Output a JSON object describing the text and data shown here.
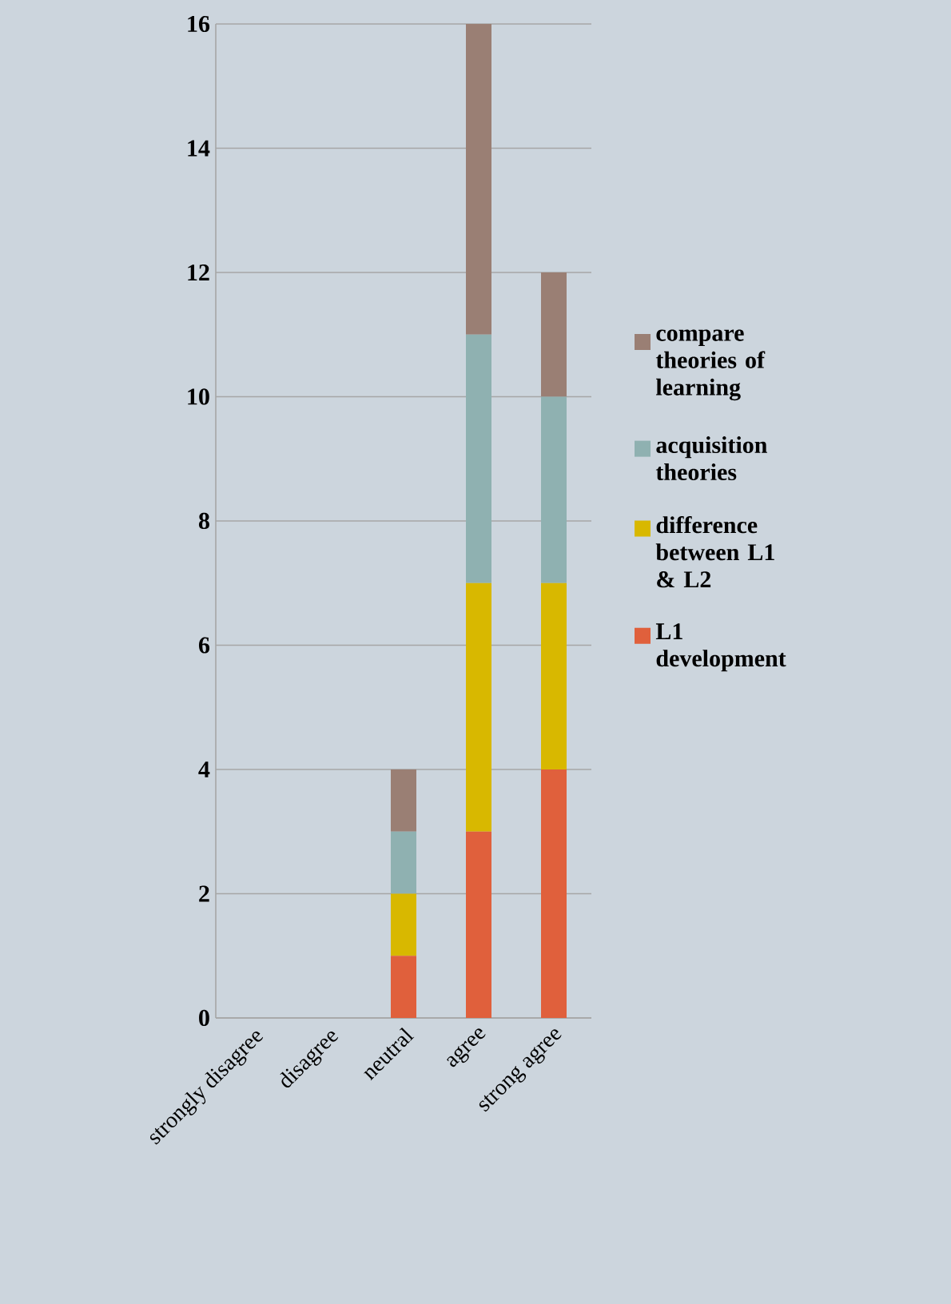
{
  "chart_data": {
    "type": "bar",
    "stacked": true,
    "categories": [
      "strongly disagree",
      "disagree",
      "neutral",
      "agree",
      "strong agree"
    ],
    "series": [
      {
        "name": "L1 development",
        "color": "#e0603c",
        "values": [
          0,
          0,
          1,
          3,
          4
        ]
      },
      {
        "name": "difference between L1 & L2",
        "color": "#d8b800",
        "values": [
          0,
          0,
          1,
          4,
          3
        ]
      },
      {
        "name": "acquisition theories",
        "color": "#8fb1b1",
        "values": [
          0,
          0,
          1,
          4,
          3
        ]
      },
      {
        "name": "compare theories of learning",
        "color": "#9a7f74",
        "values": [
          0,
          0,
          1,
          5,
          2
        ]
      }
    ],
    "ylim": [
      0,
      16
    ],
    "yticks": [
      0,
      2,
      4,
      6,
      8,
      10,
      12,
      14,
      16
    ],
    "grid": "y",
    "legend": "right"
  }
}
